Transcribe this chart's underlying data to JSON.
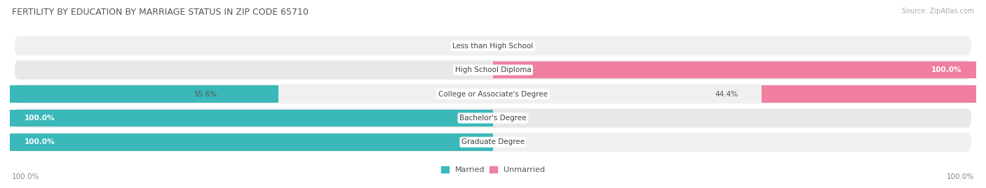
{
  "title": "FERTILITY BY EDUCATION BY MARRIAGE STATUS IN ZIP CODE 65710",
  "source": "Source: ZipAtlas.com",
  "categories": [
    "Less than High School",
    "High School Diploma",
    "College or Associate's Degree",
    "Bachelor's Degree",
    "Graduate Degree"
  ],
  "married": [
    0.0,
    0.0,
    55.6,
    100.0,
    100.0
  ],
  "unmarried": [
    0.0,
    100.0,
    44.4,
    0.0,
    0.0
  ],
  "married_color": "#3ab8ba",
  "unmarried_color": "#f07fa0",
  "row_bg_even": "#f0f0f0",
  "row_bg_odd": "#e8e8e8",
  "axis_label_left": "100.0%",
  "axis_label_right": "100.0%",
  "figsize": [
    14.06,
    2.69
  ],
  "dpi": 100
}
